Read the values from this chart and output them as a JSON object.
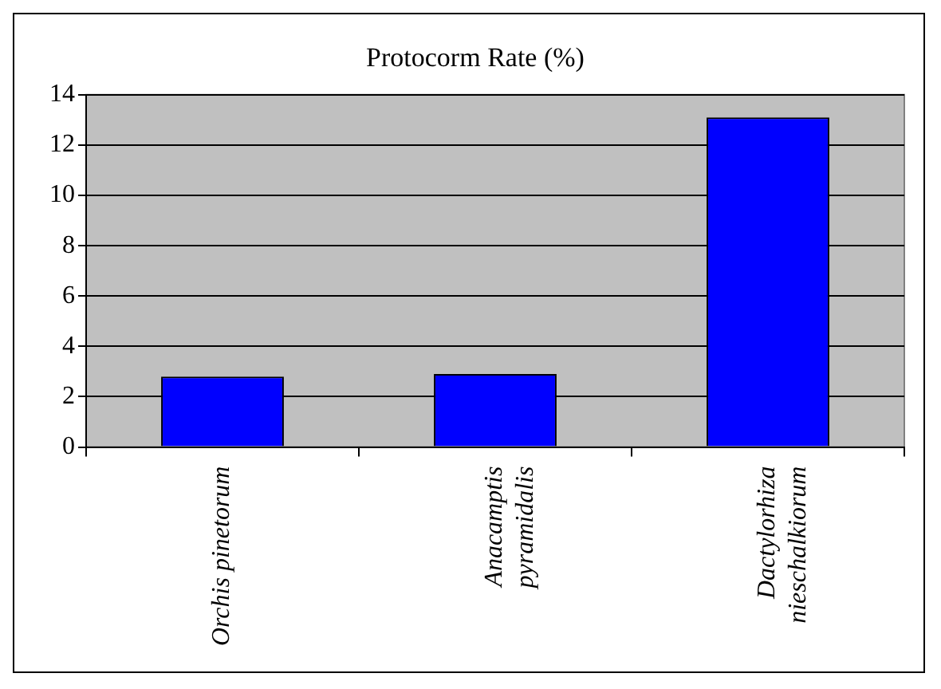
{
  "chart_data": {
    "type": "bar",
    "title": "Protocorm Rate (%)",
    "categories": [
      "Orchis pinetorum",
      "Anacamptis pyramidalis",
      "Dactylorhiza nieschalkiorum"
    ],
    "values": [
      2.8,
      2.9,
      13.1
    ],
    "color": "#0000ff",
    "ylim": [
      0,
      14
    ],
    "yticks": [
      0,
      2,
      4,
      6,
      8,
      10,
      12,
      14
    ],
    "grid": "y",
    "legend": false
  }
}
